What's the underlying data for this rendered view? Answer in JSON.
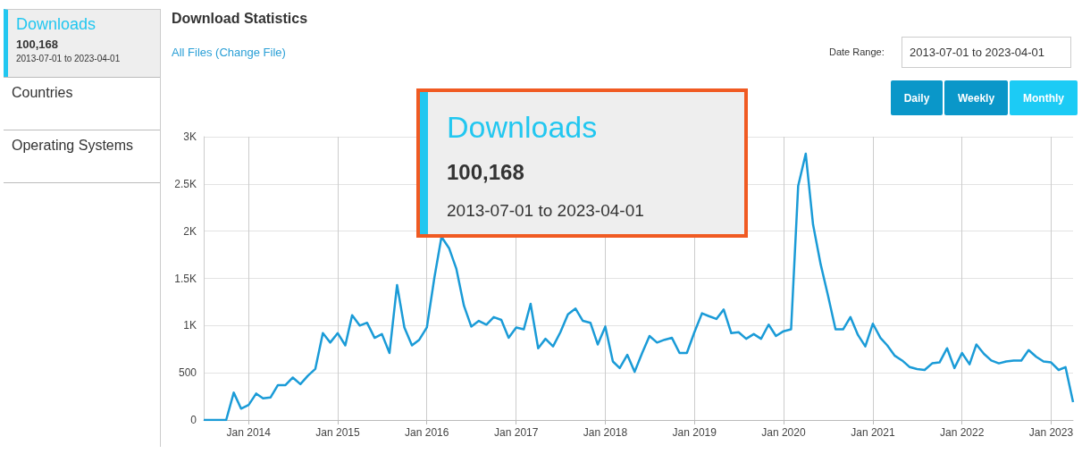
{
  "chart_data": {
    "type": "line",
    "title": "Download Statistics",
    "annotations": [
      "Downloads",
      "100,168",
      "2013-07-01 to 2023-04-01",
      "Countries",
      "Operating Systems",
      "All Files (Change File)",
      "Date Range:",
      "2013-07-01 to 2023-04-01",
      "Daily",
      "Weekly",
      "Monthly",
      "Downloads",
      "100,168",
      "2013-07-01 to 2023-04-01"
    ],
    "x": [
      "2013-07",
      "2013-08",
      "2013-09",
      "2013-10",
      "2013-11",
      "2013-12",
      "2014-01",
      "2014-02",
      "2014-03",
      "2014-04",
      "2014-05",
      "2014-06",
      "2014-07",
      "2014-08",
      "2014-09",
      "2014-10",
      "2014-11",
      "2014-12",
      "2015-01",
      "2015-02",
      "2015-03",
      "2015-04",
      "2015-05",
      "2015-06",
      "2015-07",
      "2015-08",
      "2015-09",
      "2015-10",
      "2015-11",
      "2015-12",
      "2016-01",
      "2016-02",
      "2016-03",
      "2016-04",
      "2016-05",
      "2016-06",
      "2016-07",
      "2016-08",
      "2016-09",
      "2016-10",
      "2016-11",
      "2016-12",
      "2017-01",
      "2017-02",
      "2017-03",
      "2017-04",
      "2017-05",
      "2017-06",
      "2017-07",
      "2017-08",
      "2017-09",
      "2017-10",
      "2017-11",
      "2017-12",
      "2018-01",
      "2018-02",
      "2018-03",
      "2018-04",
      "2018-05",
      "2018-06",
      "2018-07",
      "2018-08",
      "2018-09",
      "2018-10",
      "2018-11",
      "2018-12",
      "2019-01",
      "2019-02",
      "2019-03",
      "2019-04",
      "2019-05",
      "2019-06",
      "2019-07",
      "2019-08",
      "2019-09",
      "2019-10",
      "2019-11",
      "2019-12",
      "2020-01",
      "2020-02",
      "2020-03",
      "2020-04",
      "2020-05",
      "2020-06",
      "2020-07",
      "2020-08",
      "2020-09",
      "2020-10",
      "2020-11",
      "2020-12",
      "2021-01",
      "2021-02",
      "2021-03",
      "2021-04",
      "2021-05",
      "2021-06",
      "2021-07",
      "2021-08",
      "2021-09",
      "2021-10",
      "2021-11",
      "2021-12",
      "2022-01",
      "2022-02",
      "2022-03",
      "2022-04",
      "2022-05",
      "2022-06",
      "2022-07",
      "2022-08",
      "2022-09",
      "2022-10",
      "2022-11",
      "2022-12",
      "2023-01",
      "2023-02",
      "2023-03",
      "2023-04"
    ],
    "series": [
      {
        "color": "#1a9bd7",
        "values": [
          0,
          0,
          0,
          0,
          290,
          120,
          160,
          280,
          230,
          240,
          370,
          370,
          450,
          380,
          470,
          540,
          920,
          820,
          920,
          790,
          1110,
          1000,
          1030,
          870,
          910,
          710,
          1430,
          980,
          790,
          850,
          980,
          1510,
          1940,
          1820,
          1600,
          1210,
          990,
          1050,
          1010,
          1090,
          1060,
          870,
          980,
          960,
          1230,
          760,
          860,
          780,
          930,
          1120,
          1180,
          1050,
          1030,
          800,
          990,
          620,
          550,
          690,
          510,
          710,
          890,
          820,
          850,
          870,
          710,
          710,
          930,
          1130,
          1100,
          1070,
          1170,
          920,
          930,
          860,
          910,
          860,
          1010,
          890,
          940,
          960,
          2480,
          2820,
          2070,
          1650,
          1320,
          960,
          960,
          1090,
          900,
          780,
          1020,
          870,
          790,
          680,
          630,
          560,
          540,
          530,
          600,
          610,
          760,
          550,
          710,
          590,
          800,
          700,
          630,
          600,
          620,
          630,
          630,
          740,
          670,
          620,
          610,
          530,
          560,
          190
        ]
      }
    ],
    "xlim": [
      "2013-07",
      "2023-04"
    ],
    "xticks": [
      {
        "value": "2014-01",
        "label": "Jan 2014"
      },
      {
        "value": "2015-01",
        "label": "Jan 2015"
      },
      {
        "value": "2016-01",
        "label": "Jan 2016"
      },
      {
        "value": "2017-01",
        "label": "Jan 2017"
      },
      {
        "value": "2018-01",
        "label": "Jan 2018"
      },
      {
        "value": "2019-01",
        "label": "Jan 2019"
      },
      {
        "value": "2020-01",
        "label": "Jan 2020"
      },
      {
        "value": "2021-01",
        "label": "Jan 2021"
      },
      {
        "value": "2022-01",
        "label": "Jan 2022"
      },
      {
        "value": "2023-01",
        "label": "Jan 2023"
      }
    ],
    "ylim": [
      0,
      3000
    ],
    "yticks": [
      0,
      500,
      {
        "value": 1000,
        "label": "1K"
      },
      {
        "value": 1500,
        "label": "1.5K"
      },
      {
        "value": 2000,
        "label": "2K"
      },
      {
        "value": 2500,
        "label": "2.5K"
      },
      {
        "value": 3000,
        "label": "3K"
      }
    ],
    "grid": true,
    "marker": "none",
    "line_style": "solid"
  }
}
